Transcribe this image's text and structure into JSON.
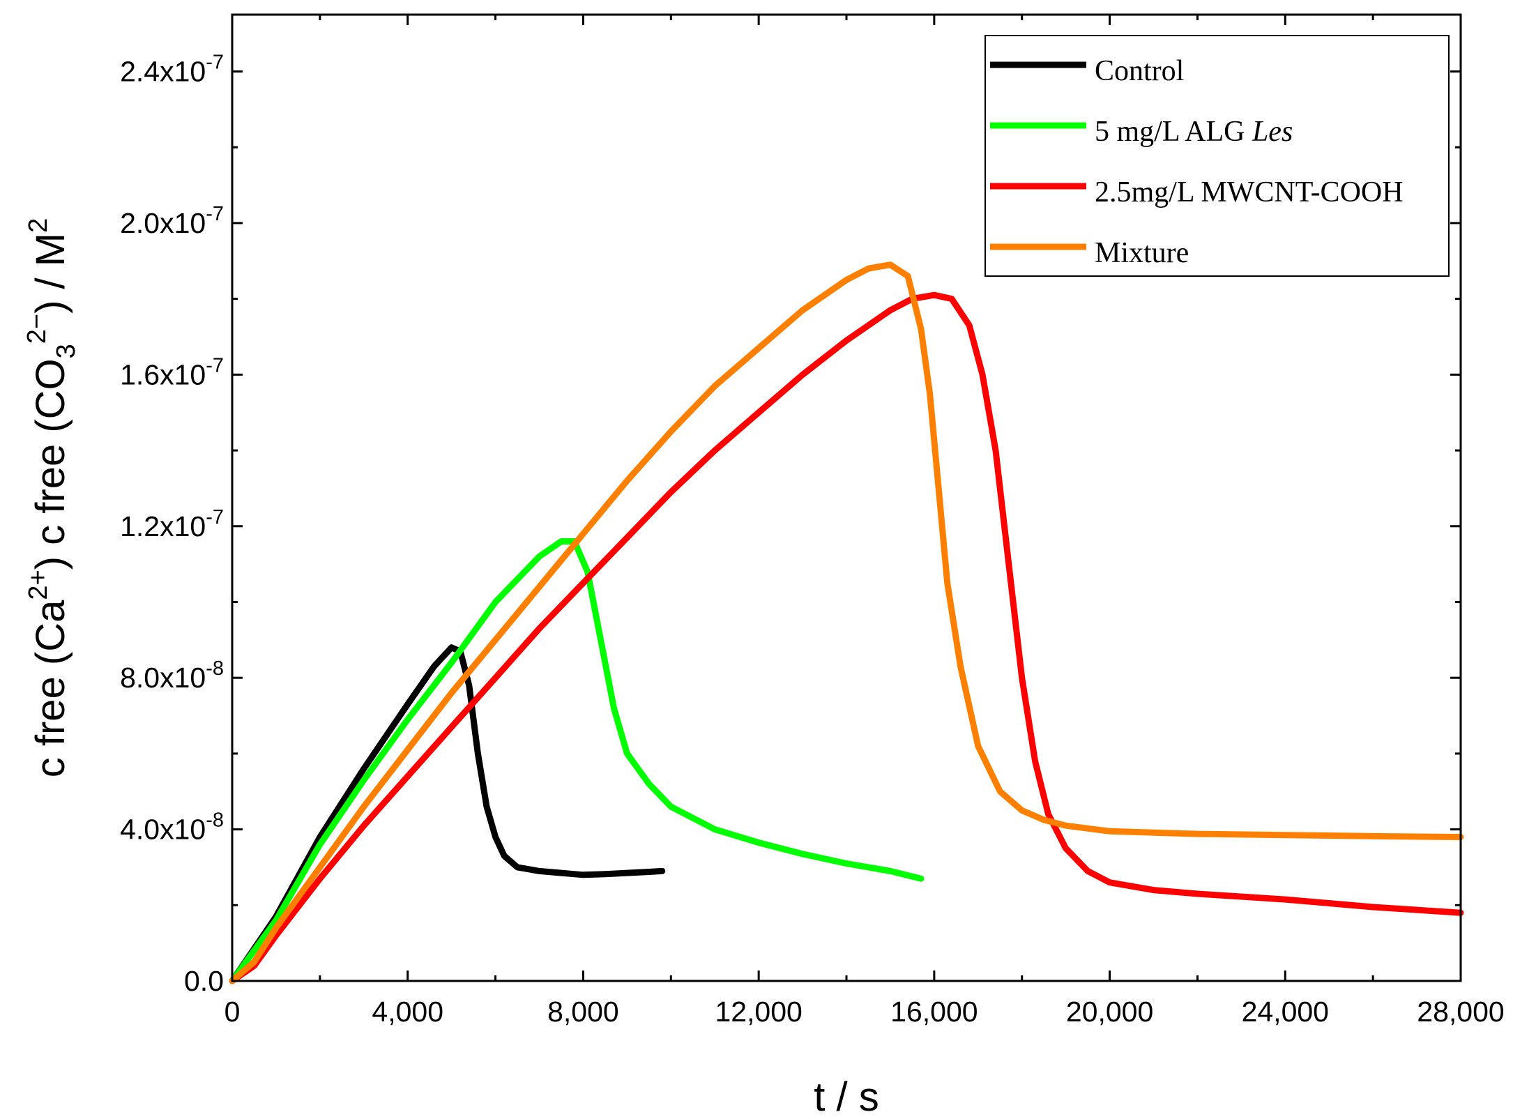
{
  "chart_data": {
    "type": "line",
    "title": "",
    "xlabel": "t / s",
    "ylabel": {
      "prefix": "c free (Ca",
      "ca_charge": "2+",
      "mid": ") c free (CO",
      "co_sub": "3",
      "co_charge": "2−",
      "suffix": ") / M",
      "unit_exp": "2"
    },
    "xlim": [
      0,
      28000
    ],
    "ylim": [
      0,
      2.55e-07
    ],
    "x_ticks": [
      {
        "value": 0,
        "label": "0"
      },
      {
        "value": 4000,
        "label": "4,000"
      },
      {
        "value": 8000,
        "label": "8,000"
      },
      {
        "value": 12000,
        "label": "12,000"
      },
      {
        "value": 16000,
        "label": "16,000"
      },
      {
        "value": 20000,
        "label": "20,000"
      },
      {
        "value": 24000,
        "label": "24,000"
      },
      {
        "value": 28000,
        "label": "28,000"
      }
    ],
    "y_ticks": [
      {
        "value": 0,
        "label": "0.0",
        "exp": ""
      },
      {
        "value": 4e-08,
        "label": "4.0x10",
        "exp": "-8"
      },
      {
        "value": 8e-08,
        "label": "8.0x10",
        "exp": "-8"
      },
      {
        "value": 1.2e-07,
        "label": "1.2x10",
        "exp": "-7"
      },
      {
        "value": 1.6e-07,
        "label": "1.6x10",
        "exp": "-7"
      },
      {
        "value": 2e-07,
        "label": "2.0x10",
        "exp": "-7"
      },
      {
        "value": 2.4e-07,
        "label": "2.4x10",
        "exp": "-7"
      }
    ],
    "legend": {
      "position": "top-right",
      "entries": [
        {
          "text": "Control",
          "italic_suffix": ""
        },
        {
          "text": "5 mg/L ALG ",
          "italic_suffix": "Les"
        },
        {
          "text": "2.5mg/L MWCNT-COOH",
          "italic_suffix": ""
        },
        {
          "text": "Mixture",
          "italic_suffix": ""
        }
      ]
    },
    "series": [
      {
        "name": "Control",
        "color": "#000000",
        "x": [
          0,
          1000,
          2000,
          3000,
          4000,
          4600,
          5000,
          5200,
          5400,
          5600,
          5800,
          6000,
          6200,
          6500,
          7000,
          7500,
          8000,
          8500,
          9000,
          9500,
          9800
        ],
        "y": [
          0,
          1.7e-08,
          3.8e-08,
          5.6e-08,
          7.3e-08,
          8.3e-08,
          8.8e-08,
          8.7e-08,
          7.8e-08,
          6e-08,
          4.6e-08,
          3.8e-08,
          3.3e-08,
          3e-08,
          2.9e-08,
          2.85e-08,
          2.8e-08,
          2.82e-08,
          2.85e-08,
          2.88e-08,
          2.9e-08
        ]
      },
      {
        "name": "5 mg/L ALG Les",
        "color": "#00ff00",
        "x": [
          0,
          1000,
          2000,
          3000,
          4000,
          5000,
          6000,
          7000,
          7500,
          7800,
          8100,
          8400,
          8700,
          9000,
          9500,
          10000,
          11000,
          12000,
          13000,
          14000,
          15000,
          15700
        ],
        "y": [
          0,
          1.6e-08,
          3.6e-08,
          5.3e-08,
          6.9e-08,
          8.4e-08,
          1e-07,
          1.12e-07,
          1.16e-07,
          1.16e-07,
          1.08e-07,
          9e-08,
          7.2e-08,
          6e-08,
          5.2e-08,
          4.6e-08,
          4e-08,
          3.65e-08,
          3.35e-08,
          3.1e-08,
          2.9e-08,
          2.7e-08
        ]
      },
      {
        "name": "2.5mg/L MWCNT-COOH",
        "color": "#ff0000",
        "x": [
          0,
          500,
          1000,
          2000,
          3000,
          4000,
          5000,
          6000,
          7000,
          8000,
          9000,
          10000,
          11000,
          12000,
          13000,
          14000,
          15000,
          15500,
          16000,
          16400,
          16800,
          17100,
          17400,
          17700,
          18000,
          18300,
          18600,
          19000,
          19500,
          20000,
          21000,
          22000,
          24000,
          26000,
          28000
        ],
        "y": [
          0,
          4e-09,
          1.2e-08,
          2.7e-08,
          4.1e-08,
          5.4e-08,
          6.7e-08,
          8e-08,
          9.3e-08,
          1.05e-07,
          1.17e-07,
          1.29e-07,
          1.4e-07,
          1.5e-07,
          1.6e-07,
          1.69e-07,
          1.77e-07,
          1.8e-07,
          1.81e-07,
          1.8e-07,
          1.73e-07,
          1.6e-07,
          1.4e-07,
          1.1e-07,
          8e-08,
          5.8e-08,
          4.4e-08,
          3.5e-08,
          2.9e-08,
          2.6e-08,
          2.4e-08,
          2.3e-08,
          2.15e-08,
          1.95e-08,
          1.8e-08
        ]
      },
      {
        "name": "Mixture",
        "color": "#ff8000",
        "x": [
          0,
          500,
          1000,
          2000,
          3000,
          4000,
          5000,
          6000,
          7000,
          8000,
          9000,
          10000,
          11000,
          12000,
          13000,
          14000,
          14500,
          15000,
          15400,
          15700,
          15900,
          16100,
          16300,
          16600,
          17000,
          17500,
          18000,
          18500,
          19000,
          20000,
          22000,
          24000,
          26000,
          28000
        ],
        "y": [
          0,
          5e-09,
          1.4e-08,
          3e-08,
          4.6e-08,
          6.1e-08,
          7.6e-08,
          9e-08,
          1.04e-07,
          1.18e-07,
          1.32e-07,
          1.45e-07,
          1.57e-07,
          1.67e-07,
          1.77e-07,
          1.85e-07,
          1.88e-07,
          1.89e-07,
          1.86e-07,
          1.72e-07,
          1.55e-07,
          1.3e-07,
          1.05e-07,
          8.3e-08,
          6.2e-08,
          5e-08,
          4.5e-08,
          4.25e-08,
          4.1e-08,
          3.95e-08,
          3.88e-08,
          3.85e-08,
          3.82e-08,
          3.8e-08
        ]
      }
    ]
  }
}
